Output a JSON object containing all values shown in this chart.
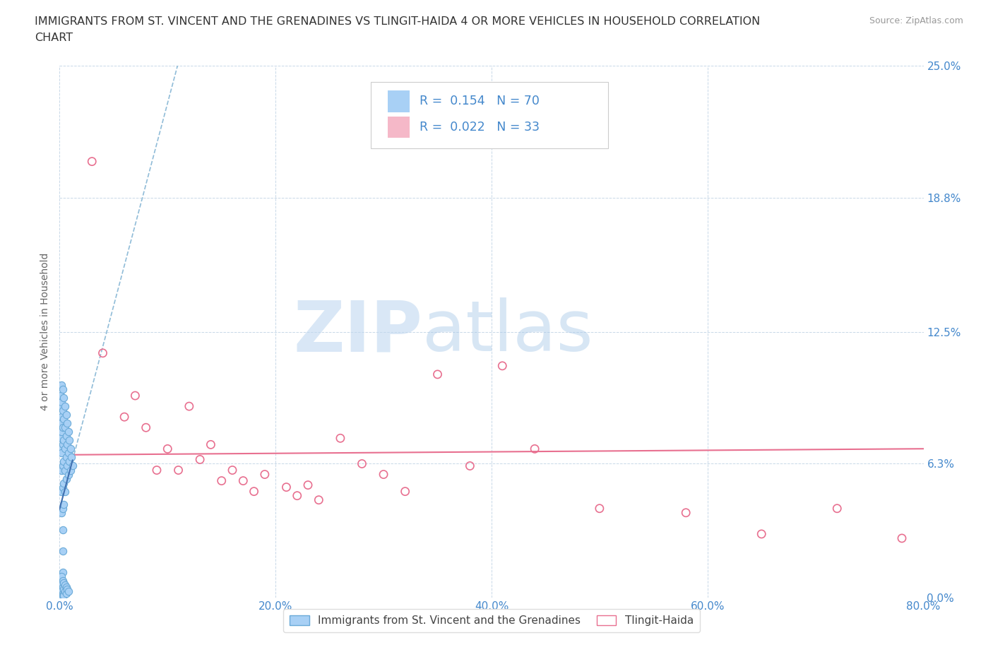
{
  "title_line1": "IMMIGRANTS FROM ST. VINCENT AND THE GRENADINES VS TLINGIT-HAIDA 4 OR MORE VEHICLES IN HOUSEHOLD CORRELATION",
  "title_line2": "CHART",
  "source_text": "Source: ZipAtlas.com",
  "ylabel": "4 or more Vehicles in Household",
  "xlim": [
    0.0,
    0.8
  ],
  "ylim": [
    0.0,
    0.25
  ],
  "yticks": [
    0.0,
    0.063,
    0.125,
    0.188,
    0.25
  ],
  "ytick_labels": [
    "0.0%",
    "6.3%",
    "12.5%",
    "18.8%",
    "25.0%"
  ],
  "xticks": [
    0.0,
    0.2,
    0.4,
    0.6,
    0.8
  ],
  "xtick_labels": [
    "0.0%",
    "20.0%",
    "40.0%",
    "60.0%",
    "80.0%"
  ],
  "watermark_zip": "ZIP",
  "watermark_atlas": "atlas",
  "series1_color": "#a8d0f5",
  "series1_edge": "#6aaad8",
  "series2_color": "#f5b8c8",
  "series2_edge": "#e87090",
  "series1_label": "Immigrants from St. Vincent and the Grenadines",
  "series2_label": "Tlingit-Haida",
  "series1_R": 0.154,
  "series1_N": 70,
  "series2_R": 0.022,
  "series2_N": 33,
  "trend1_color": "#90bcd8",
  "trend2_color": "#e87090",
  "axis_color": "#4488cc",
  "grid_color": "#c8d8e8",
  "series1_x": [
    0.001,
    0.001,
    0.001,
    0.001,
    0.001,
    0.002,
    0.002,
    0.002,
    0.002,
    0.002,
    0.002,
    0.002,
    0.002,
    0.003,
    0.003,
    0.003,
    0.003,
    0.003,
    0.003,
    0.003,
    0.003,
    0.003,
    0.003,
    0.004,
    0.004,
    0.004,
    0.004,
    0.004,
    0.004,
    0.005,
    0.005,
    0.005,
    0.005,
    0.005,
    0.006,
    0.006,
    0.006,
    0.006,
    0.007,
    0.007,
    0.007,
    0.008,
    0.008,
    0.008,
    0.009,
    0.009,
    0.01,
    0.01,
    0.011,
    0.012,
    0.001,
    0.001,
    0.001,
    0.002,
    0.002,
    0.002,
    0.002,
    0.003,
    0.003,
    0.003,
    0.003,
    0.004,
    0.004,
    0.004,
    0.005,
    0.005,
    0.006,
    0.006,
    0.007,
    0.008
  ],
  "series1_y": [
    0.09,
    0.082,
    0.095,
    0.075,
    0.07,
    0.1,
    0.092,
    0.085,
    0.078,
    0.068,
    0.06,
    0.05,
    0.04,
    0.098,
    0.088,
    0.08,
    0.072,
    0.062,
    0.052,
    0.042,
    0.032,
    0.022,
    0.012,
    0.094,
    0.084,
    0.074,
    0.064,
    0.054,
    0.044,
    0.09,
    0.08,
    0.07,
    0.06,
    0.05,
    0.086,
    0.076,
    0.066,
    0.056,
    0.082,
    0.072,
    0.062,
    0.078,
    0.068,
    0.058,
    0.074,
    0.064,
    0.07,
    0.06,
    0.066,
    0.062,
    0.008,
    0.004,
    0.001,
    0.006,
    0.003,
    0.01,
    0.007,
    0.008,
    0.005,
    0.002,
    0.001,
    0.007,
    0.004,
    0.001,
    0.006,
    0.003,
    0.005,
    0.002,
    0.004,
    0.003
  ],
  "series2_x": [
    0.03,
    0.04,
    0.06,
    0.07,
    0.08,
    0.09,
    0.1,
    0.11,
    0.12,
    0.13,
    0.14,
    0.15,
    0.16,
    0.17,
    0.18,
    0.19,
    0.21,
    0.22,
    0.23,
    0.24,
    0.26,
    0.28,
    0.3,
    0.32,
    0.35,
    0.38,
    0.41,
    0.44,
    0.5,
    0.58,
    0.65,
    0.72,
    0.78
  ],
  "series2_y": [
    0.205,
    0.115,
    0.085,
    0.095,
    0.08,
    0.06,
    0.07,
    0.06,
    0.09,
    0.065,
    0.072,
    0.055,
    0.06,
    0.055,
    0.05,
    0.058,
    0.052,
    0.048,
    0.053,
    0.046,
    0.075,
    0.063,
    0.058,
    0.05,
    0.105,
    0.062,
    0.109,
    0.07,
    0.042,
    0.04,
    0.03,
    0.042,
    0.028
  ]
}
